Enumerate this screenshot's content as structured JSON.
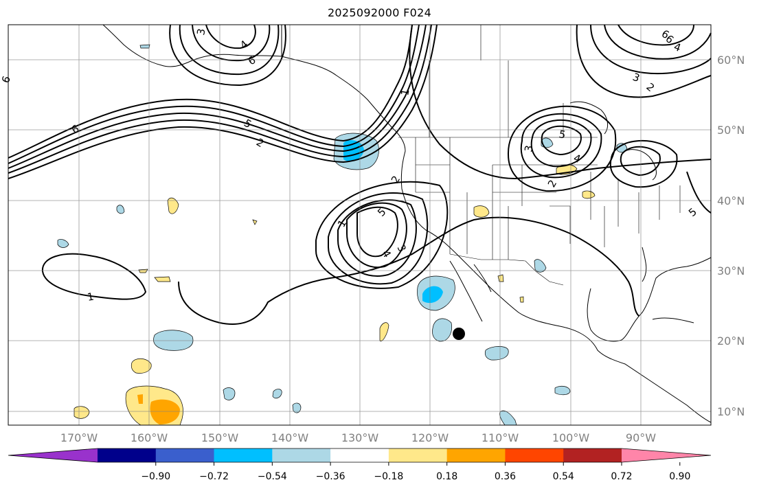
{
  "title": "2025092000 F024",
  "lon_ticks": [
    "170°W",
    "160°W",
    "150°W",
    "140°W",
    "130°W",
    "120°W",
    "110°W",
    "100°W",
    "90°W"
  ],
  "lat_ticks": [
    "60°N",
    "50°N",
    "40°N",
    "30°N",
    "20°N",
    "10°N"
  ],
  "colorbar": {
    "tick_labels": [
      "−0.90",
      "−0.72",
      "−0.54",
      "−0.36",
      "−0.18",
      "0.18",
      "0.36",
      "0.54",
      "0.72",
      "0.90"
    ],
    "colors": [
      "#9932cc",
      "#00008b",
      "#3a5fcd",
      "#00bfff",
      "#add8e6",
      "#ffffff",
      "#ffe88a",
      "#ffa500",
      "#ff4500",
      "#b22222",
      "#ff85a9"
    ]
  },
  "contour_labels": [
    "3",
    "4",
    "6",
    "6",
    "6",
    "6",
    "5",
    "2",
    "1",
    "1",
    "1",
    "2",
    "5",
    "4",
    "3",
    "3",
    "5",
    "4",
    "2",
    "3",
    "2",
    "4",
    "6",
    "5"
  ],
  "grid": true,
  "marker": "black-dot"
}
